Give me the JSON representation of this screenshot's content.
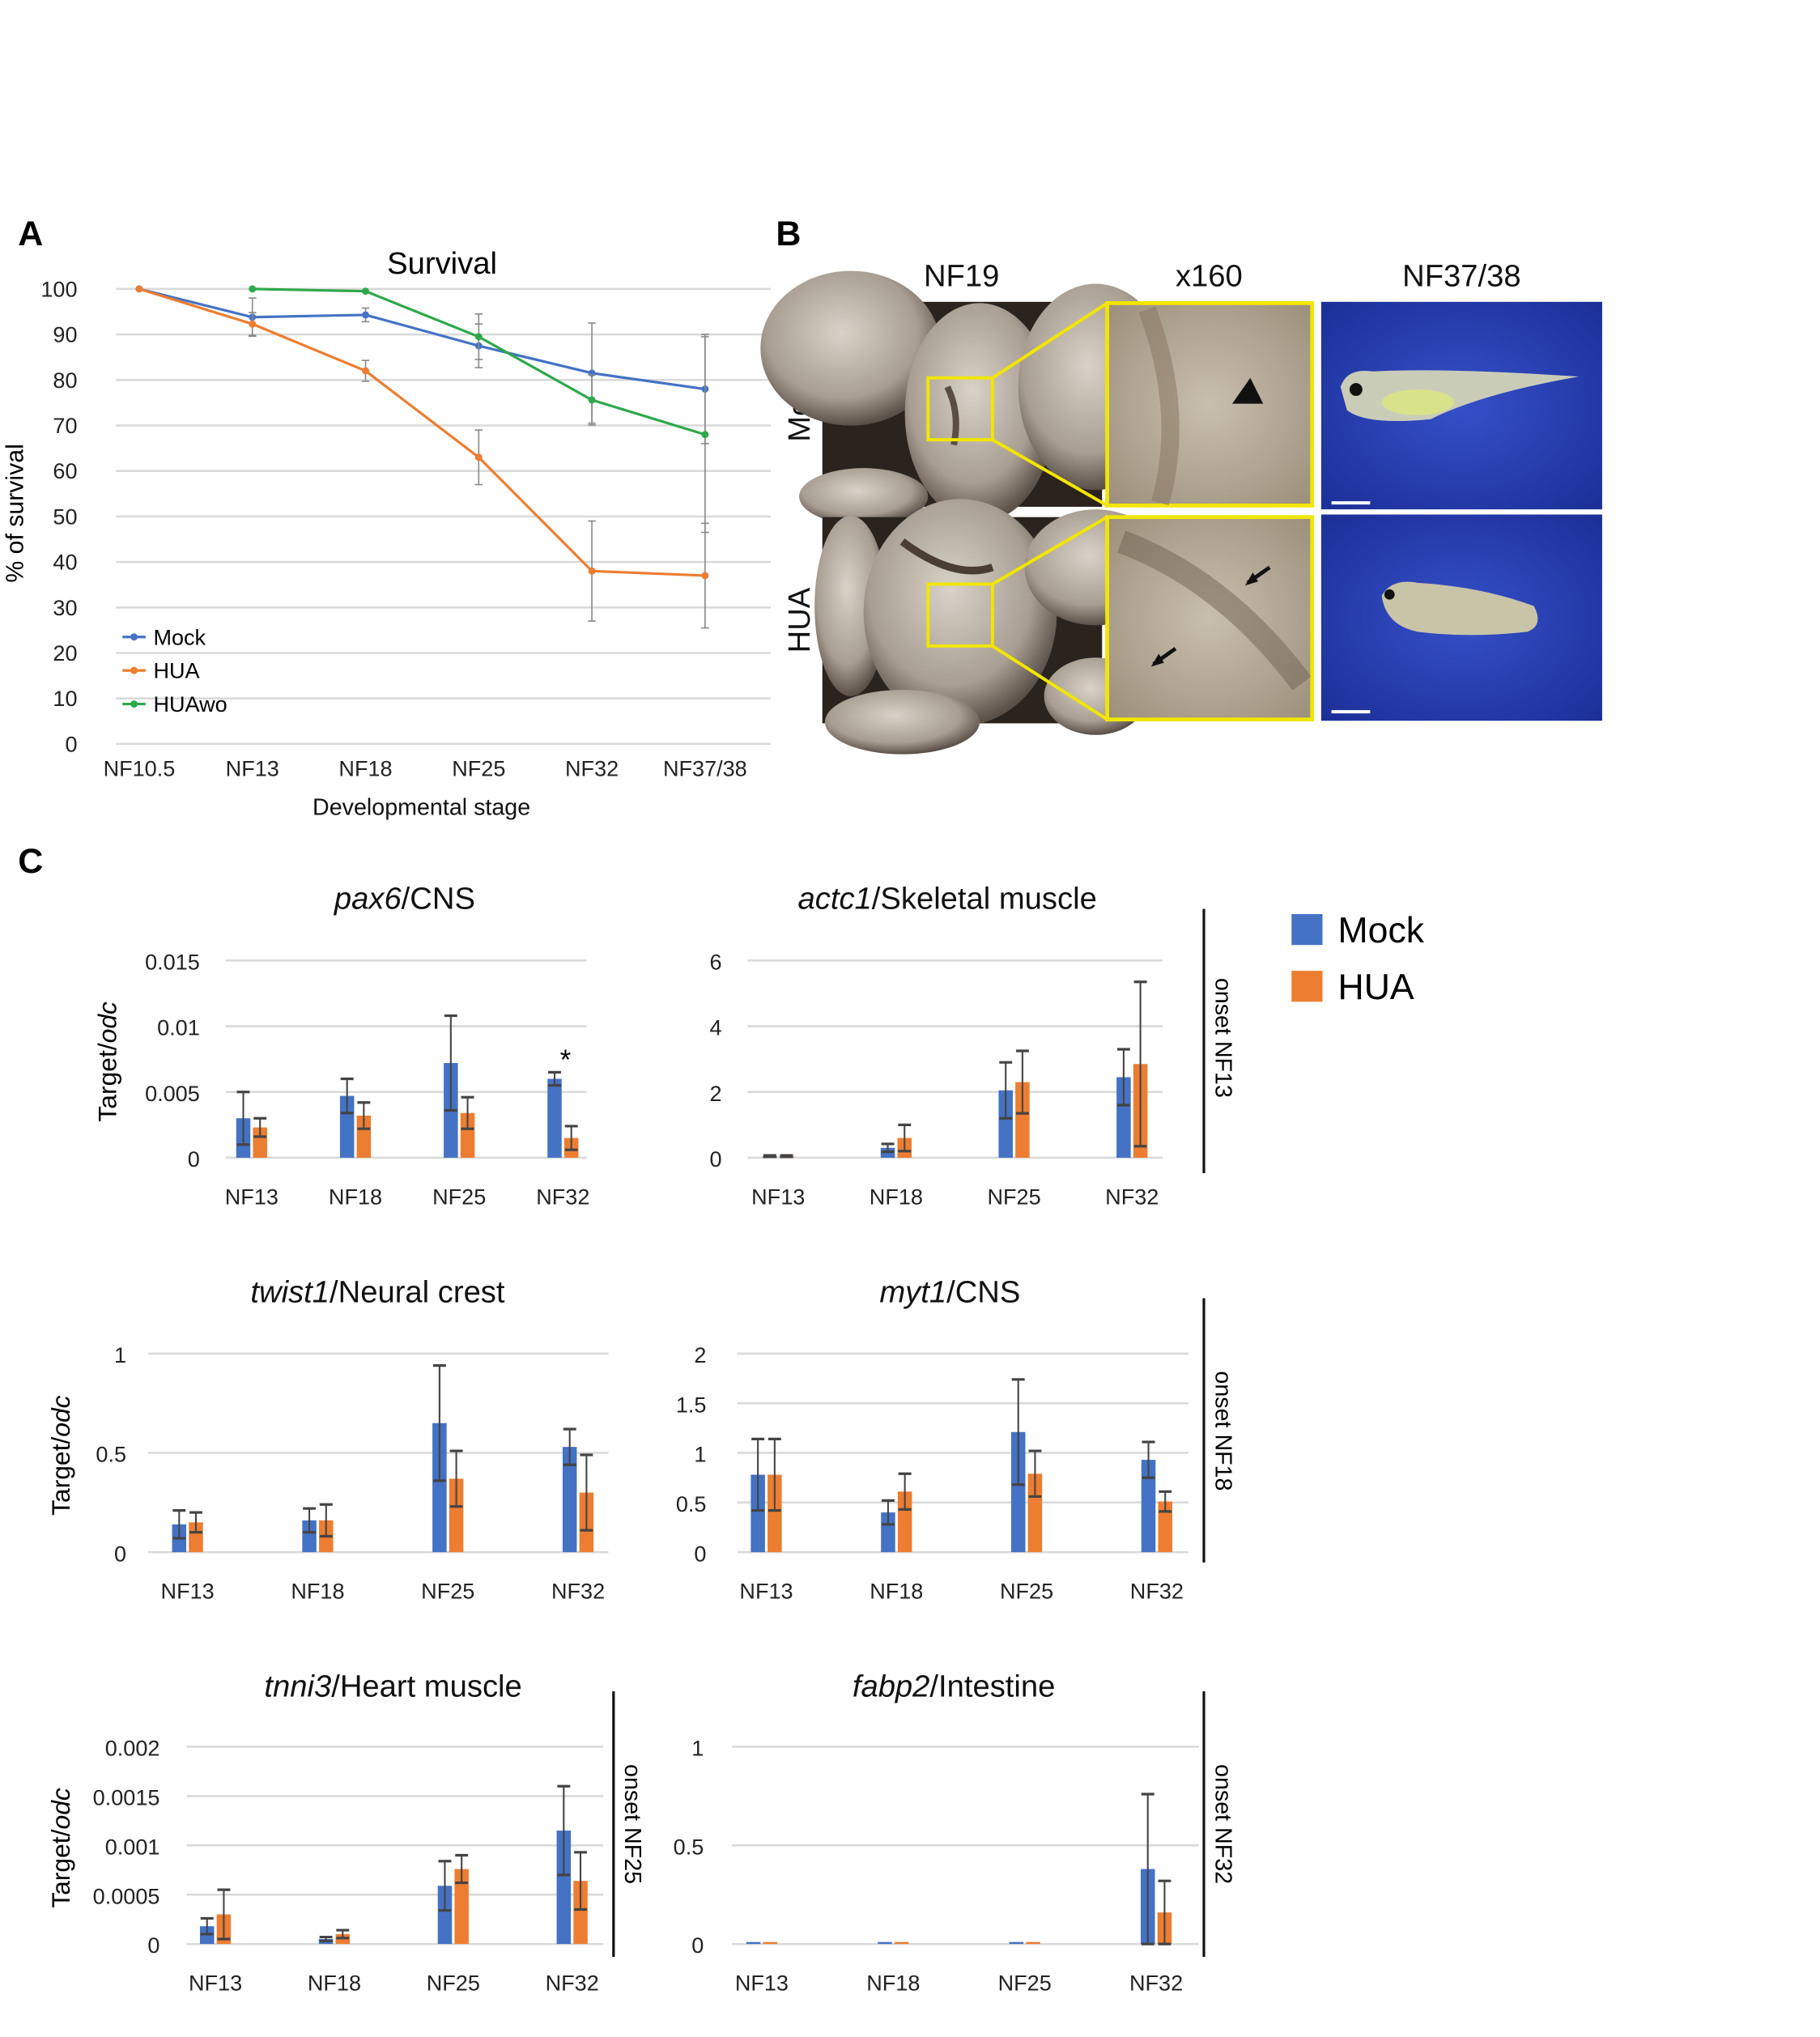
{
  "panels": {
    "a": "A",
    "b": "B",
    "c": "C"
  },
  "panel_b": {
    "column_headers": [
      "NF19",
      "x160",
      "NF37/38"
    ],
    "row_labels": [
      "Mock",
      "HUA"
    ]
  },
  "legend_c": {
    "mock": "Mock",
    "hua": "HUA",
    "colors": {
      "mock": "#4472C4",
      "hua": "#ED7D31"
    }
  },
  "chart_data": [
    {
      "type": "line",
      "title": "Survival",
      "xlabel": "Developmental stage",
      "ylabel": "% of survival",
      "ylim": [
        0,
        100
      ],
      "yticks": [
        0,
        10,
        20,
        30,
        40,
        50,
        60,
        70,
        80,
        90,
        100
      ],
      "categories": [
        "NF10.5",
        "NF13",
        "NF18",
        "NF25",
        "NF32",
        "NF37/38"
      ],
      "legend_position": "bottom-left",
      "grid": true,
      "series": [
        {
          "name": "Mock",
          "color": "#4472C4",
          "values": [
            100,
            93.8,
            94.3,
            87.5,
            81.5,
            78
          ],
          "errors": [
            0,
            4.2,
            1.5,
            4.8,
            11,
            12
          ]
        },
        {
          "name": "HUA",
          "color": "#ED7D31",
          "values": [
            100,
            92.3,
            82,
            63,
            38,
            37
          ],
          "errors": [
            0,
            2.5,
            2.3,
            6,
            11,
            11.5
          ]
        },
        {
          "name": "HUAwo",
          "color": "#2EA84A",
          "values": [
            null,
            100,
            99.5,
            89.5,
            75.6,
            68
          ],
          "errors": [
            0,
            0,
            0,
            5,
            5.5,
            21.5
          ]
        }
      ]
    },
    {
      "type": "bar",
      "title_gene": "pax6",
      "title_rest": "/CNS",
      "ylabel_a": "Target/",
      "ylabel_b": "odc",
      "ylim": [
        0,
        0.015
      ],
      "yticks": [
        "0",
        "0.005",
        "0.01",
        "0.015"
      ],
      "ytick_values": [
        0,
        0.005,
        0.01,
        0.015
      ],
      "categories": [
        "NF13",
        "NF18",
        "NF25",
        "NF32"
      ],
      "series": [
        {
          "name": "Mock",
          "values": [
            0.003,
            0.0047,
            0.0072,
            0.006
          ],
          "errors": [
            0.002,
            0.0013,
            0.0036,
            0.0005
          ]
        },
        {
          "name": "HUA",
          "values": [
            0.0023,
            0.0032,
            0.0034,
            0.0015
          ],
          "errors": [
            0.0007,
            0.001,
            0.0012,
            0.0009
          ]
        }
      ],
      "annotation": {
        "text": "*",
        "category": "NF32"
      }
    },
    {
      "type": "bar",
      "title_gene": "actc1",
      "title_rest": "/Skeletal muscle",
      "ylim": [
        0,
        6
      ],
      "yticks": [
        "0",
        "2",
        "4",
        "6"
      ],
      "ytick_values": [
        0,
        2,
        4,
        6
      ],
      "categories": [
        "NF13",
        "NF18",
        "NF25",
        "NF32"
      ],
      "series": [
        {
          "name": "Mock",
          "values": [
            0.05,
            0.3,
            2.05,
            2.45
          ],
          "errors": [
            0.02,
            0.12,
            0.85,
            0.85
          ]
        },
        {
          "name": "HUA",
          "values": [
            0.05,
            0.6,
            2.3,
            2.85
          ],
          "errors": [
            0.02,
            0.4,
            0.95,
            2.5
          ]
        }
      ],
      "onset": "onset NF13"
    },
    {
      "type": "bar",
      "title_gene": "twist1",
      "title_rest": "/Neural crest",
      "ylabel_a": "Target/",
      "ylabel_b": "odc",
      "ylim": [
        0,
        1
      ],
      "yticks": [
        "0",
        "0.5",
        "1"
      ],
      "ytick_values": [
        0,
        0.5,
        1
      ],
      "categories": [
        "NF13",
        "NF18",
        "NF25",
        "NF32"
      ],
      "series": [
        {
          "name": "Mock",
          "values": [
            0.14,
            0.16,
            0.65,
            0.53
          ],
          "errors": [
            0.07,
            0.06,
            0.29,
            0.09
          ]
        },
        {
          "name": "HUA",
          "values": [
            0.15,
            0.16,
            0.37,
            0.3
          ],
          "errors": [
            0.05,
            0.08,
            0.14,
            0.19
          ]
        }
      ]
    },
    {
      "type": "bar",
      "title_gene": "myt1",
      "title_rest": "/CNS",
      "ylim": [
        0,
        2
      ],
      "yticks": [
        "0",
        "0.5",
        "1",
        "1.5",
        "2"
      ],
      "ytick_values": [
        0,
        0.5,
        1,
        1.5,
        2
      ],
      "categories": [
        "NF13",
        "NF18",
        "NF25",
        "NF32"
      ],
      "series": [
        {
          "name": "Mock",
          "values": [
            0.78,
            0.4,
            1.21,
            0.93
          ],
          "errors": [
            0.36,
            0.12,
            0.53,
            0.18
          ]
        },
        {
          "name": "HUA",
          "values": [
            0.78,
            0.61,
            0.79,
            0.51
          ],
          "errors": [
            0.36,
            0.18,
            0.23,
            0.1
          ]
        }
      ],
      "onset": "onset NF18"
    },
    {
      "type": "bar",
      "title_gene": "tnni3",
      "title_rest": "/Heart muscle",
      "ylabel_a": "Target/",
      "ylabel_b": "odc",
      "ylim": [
        0,
        0.002
      ],
      "yticks": [
        "0",
        "0.0005",
        "0.001",
        "0.0015",
        "0.002"
      ],
      "ytick_values": [
        0,
        0.0005,
        0.001,
        0.0015,
        0.002
      ],
      "categories": [
        "NF13",
        "NF18",
        "NF25",
        "NF32"
      ],
      "series": [
        {
          "name": "Mock",
          "values": [
            0.00018,
            5e-05,
            0.00059,
            0.00115
          ],
          "errors": [
            8e-05,
            2e-05,
            0.00025,
            0.00045
          ]
        },
        {
          "name": "HUA",
          "values": [
            0.0003,
            0.0001,
            0.00076,
            0.00064
          ],
          "errors": [
            0.00025,
            4e-05,
            0.00014,
            0.00029
          ]
        }
      ],
      "onset": "onset NF25"
    },
    {
      "type": "bar",
      "title_gene": "fabp2",
      "title_rest": "/Intestine",
      "ylim": [
        0,
        1
      ],
      "yticks": [
        "0",
        "0.5",
        "1"
      ],
      "ytick_values": [
        0,
        0.5,
        1
      ],
      "categories": [
        "NF13",
        "NF18",
        "NF25",
        "NF32"
      ],
      "series": [
        {
          "name": "Mock",
          "values": [
            0.01,
            0.01,
            0.01,
            0.38
          ],
          "errors": [
            0,
            0,
            0,
            0.38
          ]
        },
        {
          "name": "HUA",
          "values": [
            0.01,
            0.01,
            0.01,
            0.16
          ],
          "errors": [
            0,
            0,
            0,
            0.16
          ]
        }
      ],
      "onset": "onset NF32"
    }
  ]
}
